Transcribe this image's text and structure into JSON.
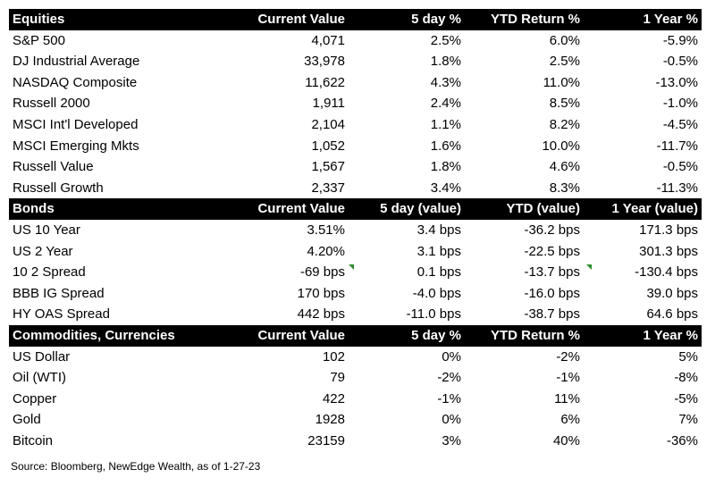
{
  "sections": [
    {
      "id": "equities",
      "headers": [
        "Equities",
        "Current Value",
        "5 day %",
        "YTD Return %",
        "1 Year %"
      ],
      "rows": [
        [
          "S&P 500",
          "4,071",
          "2.5%",
          "6.0%",
          "-5.9%"
        ],
        [
          "DJ Industrial Average",
          "33,978",
          "1.8%",
          "2.5%",
          "-0.5%"
        ],
        [
          "NASDAQ Composite",
          "11,622",
          "4.3%",
          "11.0%",
          "-13.0%"
        ],
        [
          "Russell 2000",
          "1,911",
          "2.4%",
          "8.5%",
          "-1.0%"
        ],
        [
          "MSCI Int'l Developed",
          "2,104",
          "1.1%",
          "8.2%",
          "-4.5%"
        ],
        [
          "MSCI Emerging Mkts",
          "1,052",
          "1.6%",
          "10.0%",
          "-11.7%"
        ],
        [
          "Russell Value",
          "1,567",
          "1.8%",
          "4.6%",
          "-0.5%"
        ],
        [
          "Russell Growth",
          "2,337",
          "3.4%",
          "8.3%",
          "-11.3%"
        ]
      ]
    },
    {
      "id": "bonds",
      "headers": [
        "Bonds",
        "Current Value",
        "5 day (value)",
        "YTD (value)",
        "1 Year (value)"
      ],
      "rows": [
        [
          "US 10 Year",
          "3.51%",
          "3.4 bps",
          "-36.2 bps",
          "171.3 bps"
        ],
        [
          "US 2 Year",
          "4.20%",
          "3.1 bps",
          "-22.5 bps",
          "301.3 bps"
        ],
        [
          "10 2 Spread",
          "-69 bps",
          "0.1 bps",
          "-13.7 bps",
          "-130.4 bps"
        ],
        [
          "BBB IG Spread",
          "170 bps",
          "-4.0 bps",
          "-16.0 bps",
          "39.0 bps"
        ],
        [
          "HY OAS Spread",
          "442 bps",
          "-11.0 bps",
          "-38.7 bps",
          "64.6 bps"
        ]
      ]
    },
    {
      "id": "commodities",
      "headers": [
        "Commodities, Currencies",
        "Current Value",
        "5 day %",
        "YTD Return %",
        "1 Year %"
      ],
      "rows": [
        [
          "US Dollar",
          "102",
          "0%",
          "-2%",
          "5%"
        ],
        [
          "Oil (WTI)",
          "79",
          "-2%",
          "-1%",
          "-8%"
        ],
        [
          "Copper",
          "422",
          "-1%",
          "11%",
          "-5%"
        ],
        [
          "Gold",
          "1928",
          "0%",
          "6%",
          "7%"
        ],
        [
          "Bitcoin",
          "23159",
          "3%",
          "40%",
          "-36%"
        ]
      ]
    }
  ],
  "source": "Source: Bloomberg, NewEdge Wealth, as of 1-27-23",
  "colors": {
    "header_bg": "#000000",
    "header_text": "#ffffff",
    "comment_marker": "#2e8b2e"
  }
}
